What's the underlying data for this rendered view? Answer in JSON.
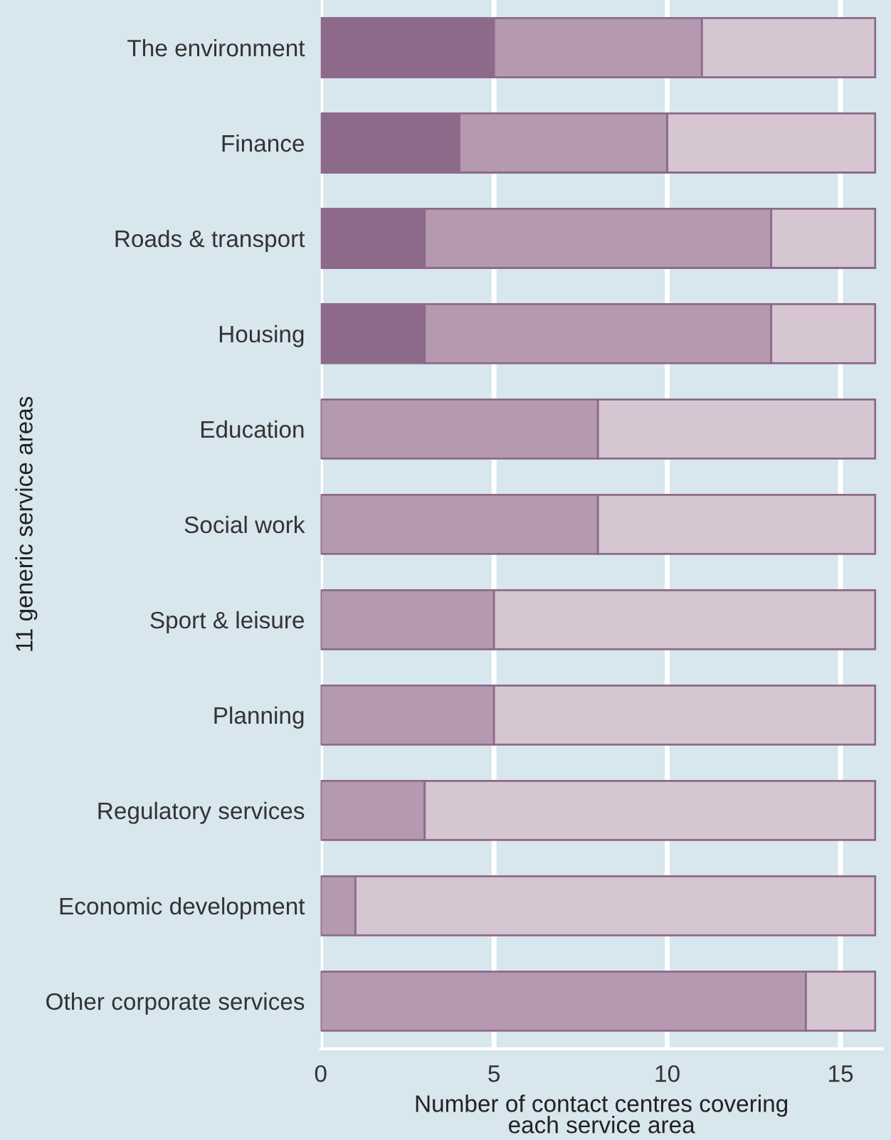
{
  "chart_data": {
    "type": "bar",
    "orientation": "horizontal",
    "stacked": true,
    "ylabel": "11 generic service areas",
    "xlabel": "Number of contact centres covering\neach service area",
    "categories": [
      "The environment",
      "Finance",
      "Roads & transport",
      "Housing",
      "Education",
      "Social work",
      "Sport & leisure",
      "Planning",
      "Regulatory services",
      "Economic development",
      "Other corporate services"
    ],
    "series": [
      {
        "color": "#8d6a8a",
        "values": [
          5,
          4,
          3,
          3,
          0,
          0,
          0,
          0,
          0,
          0,
          0
        ]
      },
      {
        "color": "#b499b0",
        "values": [
          6,
          6,
          10,
          10,
          8,
          8,
          5,
          5,
          3,
          1,
          14
        ]
      },
      {
        "color": "#d5c6d1",
        "values": [
          5,
          6,
          3,
          3,
          8,
          8,
          11,
          11,
          13,
          15,
          2
        ]
      }
    ],
    "xlim": [
      0,
      16.2
    ],
    "xticks": [
      0,
      5,
      10,
      15
    ],
    "grid": "x",
    "legend": false
  }
}
